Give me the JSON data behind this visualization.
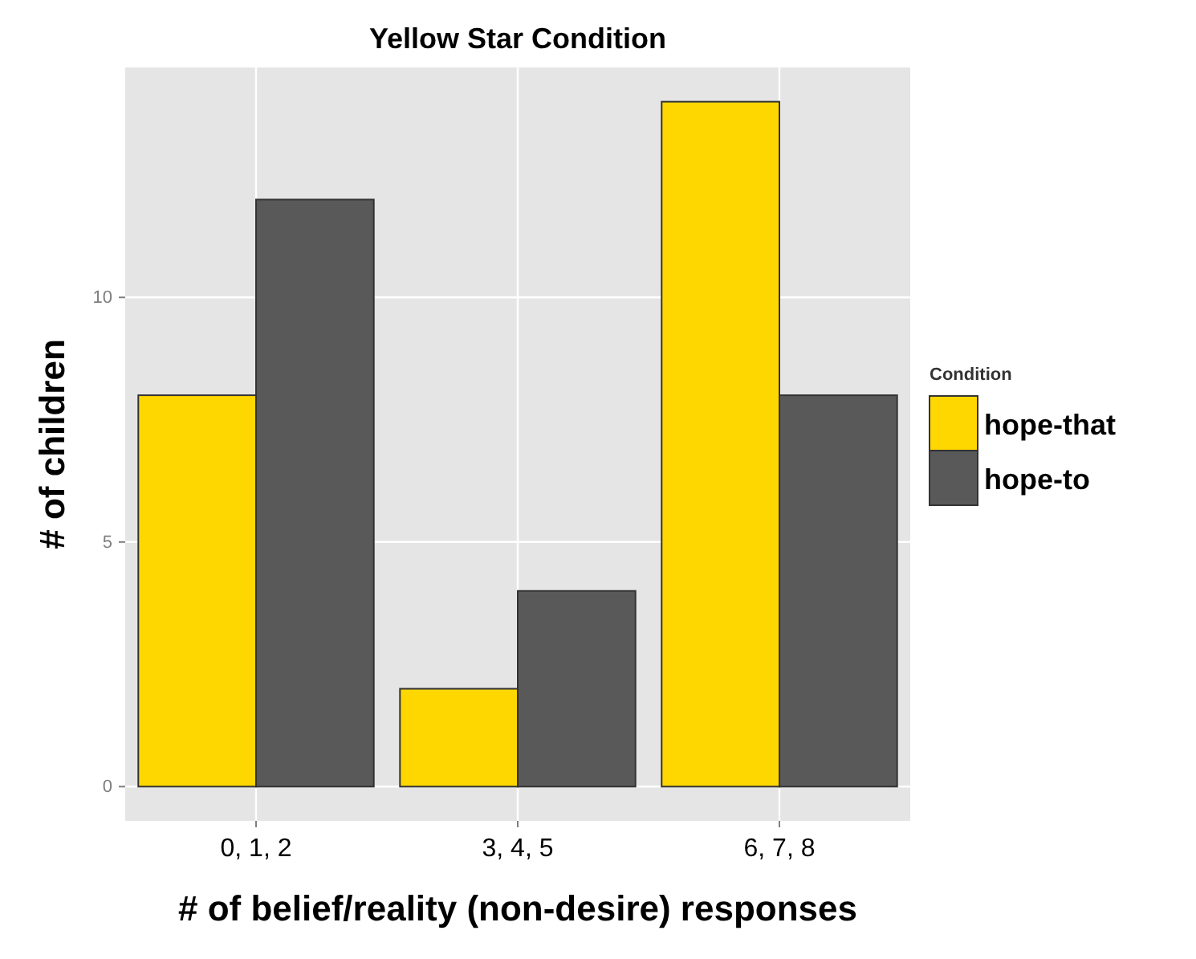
{
  "chart_data": {
    "type": "bar",
    "title": "Yellow Star Condition",
    "xlabel": "# of belief/reality (non-desire) responses",
    "ylabel": "# of children",
    "legend_title": "Condition",
    "categories": [
      "0, 1, 2",
      "3, 4, 5",
      "6, 7, 8"
    ],
    "series": [
      {
        "name": "hope-that",
        "color": "#ffd700",
        "values": [
          8,
          2,
          14
        ]
      },
      {
        "name": "hope-to",
        "color": "#595959",
        "values": [
          12,
          4,
          8
        ]
      }
    ],
    "ylim": [
      -0.7,
      14.7
    ],
    "yticks": [
      0,
      5,
      10
    ],
    "grid": true,
    "legend": "right"
  }
}
